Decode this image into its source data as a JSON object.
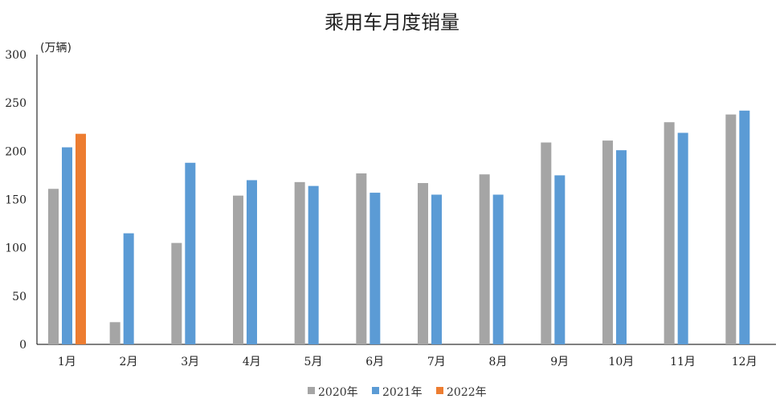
{
  "chart_data": {
    "type": "bar",
    "title": "乘用车月度销量",
    "ylabel": "(万辆)",
    "xlabel": "",
    "ylim": [
      0,
      300
    ],
    "yticks": [
      0,
      50,
      100,
      150,
      200,
      250,
      300
    ],
    "categories": [
      "1月",
      "2月",
      "3月",
      "4月",
      "5月",
      "6月",
      "7月",
      "8月",
      "9月",
      "10月",
      "11月",
      "12月"
    ],
    "series": [
      {
        "name": "2020年",
        "color": "#a5a5a5",
        "values": [
          161,
          23,
          105,
          154,
          168,
          177,
          167,
          176,
          209,
          211,
          230,
          238
        ]
      },
      {
        "name": "2021年",
        "color": "#5b9bd5",
        "values": [
          204,
          115,
          188,
          170,
          164,
          157,
          155,
          155,
          175,
          201,
          219,
          242
        ]
      },
      {
        "name": "2022年",
        "color": "#ed7d31",
        "values": [
          218,
          null,
          null,
          null,
          null,
          null,
          null,
          null,
          null,
          null,
          null,
          null
        ]
      }
    ],
    "grid": false,
    "legend_position": "bottom"
  }
}
